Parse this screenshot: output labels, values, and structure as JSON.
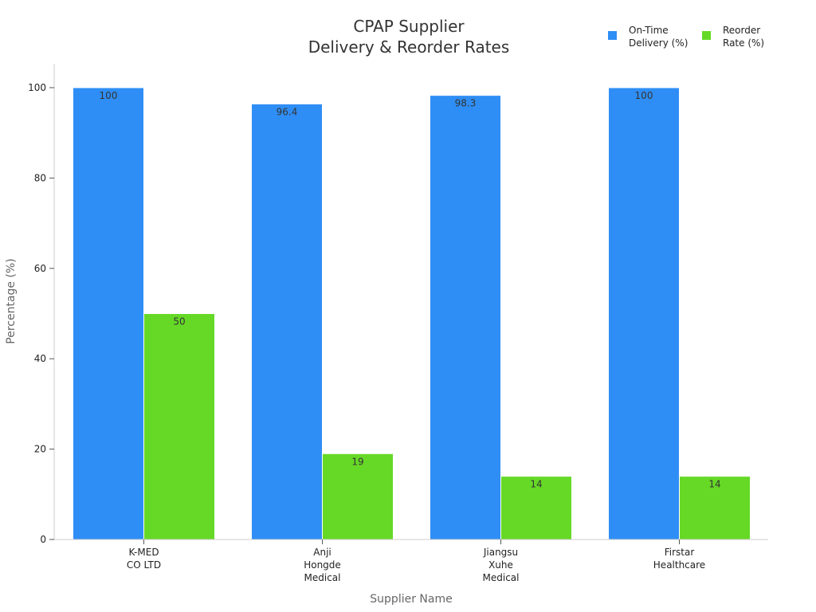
{
  "chart_data": {
    "type": "bar",
    "title_lines": [
      "CPAP Supplier",
      "Delivery & Reorder Rates"
    ],
    "xlabel": "Supplier Name",
    "ylabel": "Percentage (%)",
    "categories": [
      [
        "K-MED",
        "CO LTD"
      ],
      [
        "Anji",
        "Hongde",
        "Medical"
      ],
      [
        "Jiangsu",
        "Xuhe",
        "Medical"
      ],
      [
        "Firstar",
        "Healthcare"
      ]
    ],
    "series": [
      {
        "name_lines": [
          "On-Time",
          "Delivery (%)"
        ],
        "color": "#2f8ef5",
        "values": [
          100,
          96.4,
          98.3,
          100
        ],
        "labels": [
          "100",
          "96.4",
          "98.3",
          "100"
        ]
      },
      {
        "name_lines": [
          "Reorder",
          "Rate (%)"
        ],
        "color": "#66d926",
        "values": [
          50,
          19,
          14,
          14
        ],
        "labels": [
          "50",
          "19",
          "14",
          "14"
        ]
      }
    ],
    "ylim": [
      0,
      105
    ],
    "yticks": [
      0,
      20,
      40,
      60,
      80,
      100
    ],
    "legend": "top-right",
    "grid": false
  }
}
